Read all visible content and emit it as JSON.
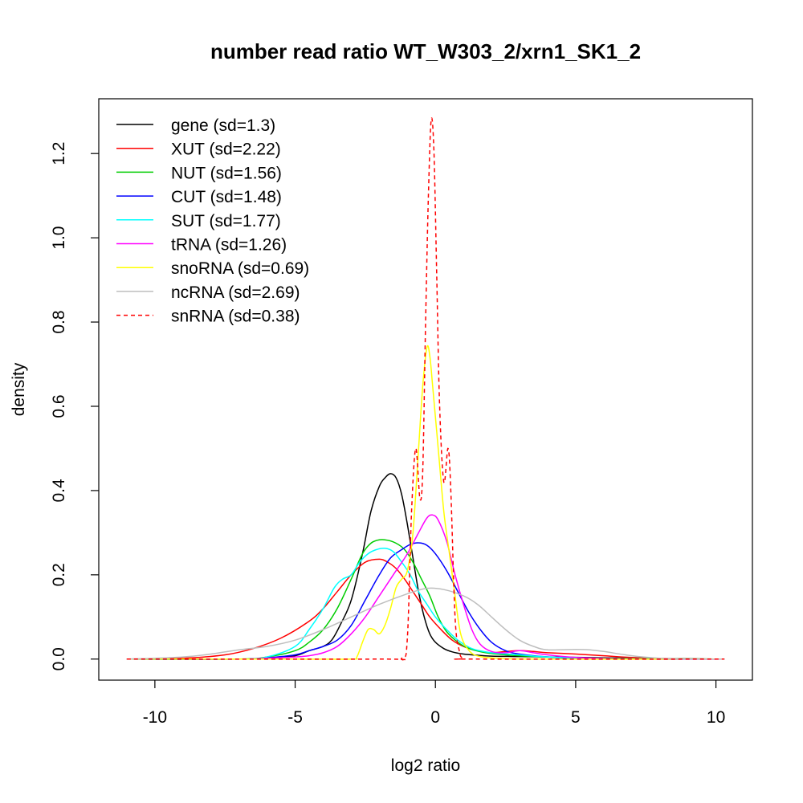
{
  "chart_data": {
    "type": "line",
    "title": "number read ratio WT_W303_2/xrn1_SK1_2",
    "xlabel": "log2 ratio",
    "ylabel": "density",
    "xlim": [
      -12,
      11.3
    ],
    "ylim": [
      -0.05,
      1.33
    ],
    "xticks": [
      -10,
      -5,
      0,
      5,
      10
    ],
    "yticks": [
      0.0,
      0.2,
      0.4,
      0.6,
      0.8,
      1.0,
      1.2
    ],
    "xtick_labels": [
      "-10",
      "-5",
      "0",
      "5",
      "10"
    ],
    "ytick_labels": [
      "0.0",
      "0.2",
      "0.4",
      "0.6",
      "0.8",
      "1.0",
      "1.2"
    ],
    "grid": false,
    "legend_position": "top-left",
    "series": [
      {
        "name": "gene (sd=1.3)",
        "color": "#000000",
        "dash": false,
        "points": [
          [
            -11,
            0
          ],
          [
            -7,
            0
          ],
          [
            -6,
            0.002
          ],
          [
            -5,
            0.008
          ],
          [
            -4.5,
            0.02
          ],
          [
            -4,
            0.03
          ],
          [
            -3.7,
            0.045
          ],
          [
            -3.4,
            0.08
          ],
          [
            -3,
            0.14
          ],
          [
            -2.6,
            0.25
          ],
          [
            -2.3,
            0.35
          ],
          [
            -2,
            0.41
          ],
          [
            -1.8,
            0.43
          ],
          [
            -1.6,
            0.44
          ],
          [
            -1.4,
            0.43
          ],
          [
            -1.2,
            0.39
          ],
          [
            -1,
            0.32
          ],
          [
            -0.8,
            0.24
          ],
          [
            -0.6,
            0.16
          ],
          [
            -0.4,
            0.1
          ],
          [
            -0.2,
            0.06
          ],
          [
            0,
            0.04
          ],
          [
            0.3,
            0.025
          ],
          [
            0.6,
            0.017
          ],
          [
            1,
            0.012
          ],
          [
            1.5,
            0.009
          ],
          [
            2,
            0.007
          ],
          [
            3,
            0.006
          ],
          [
            4,
            0.005
          ],
          [
            6,
            0.003
          ],
          [
            8,
            0.001
          ],
          [
            10.3,
            0
          ]
        ]
      },
      {
        "name": "XUT (sd=2.22)",
        "color": "#ff0000",
        "dash": false,
        "points": [
          [
            -11,
            0
          ],
          [
            -9,
            0.002
          ],
          [
            -7.5,
            0.01
          ],
          [
            -6.5,
            0.025
          ],
          [
            -5.5,
            0.05
          ],
          [
            -4.5,
            0.09
          ],
          [
            -4,
            0.12
          ],
          [
            -3.5,
            0.16
          ],
          [
            -3,
            0.2
          ],
          [
            -2.5,
            0.23
          ],
          [
            -2,
            0.237
          ],
          [
            -1.7,
            0.23
          ],
          [
            -1.4,
            0.215
          ],
          [
            -1.1,
            0.19
          ],
          [
            -0.8,
            0.16
          ],
          [
            -0.5,
            0.13
          ],
          [
            -0.2,
            0.1
          ],
          [
            0.2,
            0.07
          ],
          [
            0.6,
            0.045
          ],
          [
            1,
            0.03
          ],
          [
            1.5,
            0.02
          ],
          [
            2,
            0.015
          ],
          [
            2.5,
            0.018
          ],
          [
            3,
            0.02
          ],
          [
            3.5,
            0.018
          ],
          [
            4,
            0.015
          ],
          [
            5,
            0.012
          ],
          [
            6,
            0.008
          ],
          [
            7,
            0.004
          ],
          [
            8.5,
            0.001
          ],
          [
            10.3,
            0
          ]
        ]
      },
      {
        "name": "NUT (sd=1.56)",
        "color": "#00cd00",
        "dash": false,
        "points": [
          [
            -11,
            0
          ],
          [
            -7,
            0
          ],
          [
            -6,
            0.005
          ],
          [
            -5,
            0.02
          ],
          [
            -4.5,
            0.04
          ],
          [
            -4,
            0.07
          ],
          [
            -3.5,
            0.12
          ],
          [
            -3,
            0.19
          ],
          [
            -2.6,
            0.25
          ],
          [
            -2.3,
            0.275
          ],
          [
            -2,
            0.283
          ],
          [
            -1.7,
            0.282
          ],
          [
            -1.4,
            0.275
          ],
          [
            -1.1,
            0.26
          ],
          [
            -0.8,
            0.23
          ],
          [
            -0.5,
            0.19
          ],
          [
            -0.2,
            0.15
          ],
          [
            0.1,
            0.1
          ],
          [
            0.4,
            0.065
          ],
          [
            0.8,
            0.04
          ],
          [
            1.2,
            0.025
          ],
          [
            1.8,
            0.015
          ],
          [
            2.5,
            0.01
          ],
          [
            3.5,
            0.006
          ],
          [
            5,
            0.003
          ],
          [
            7,
            0.001
          ],
          [
            10.3,
            0
          ]
        ]
      },
      {
        "name": "CUT (sd=1.48)",
        "color": "#0000ff",
        "dash": false,
        "points": [
          [
            -11,
            0
          ],
          [
            -7,
            0
          ],
          [
            -6,
            0.003
          ],
          [
            -5,
            0.01
          ],
          [
            -4.5,
            0.02
          ],
          [
            -4,
            0.03
          ],
          [
            -3.5,
            0.045
          ],
          [
            -3,
            0.08
          ],
          [
            -2.5,
            0.14
          ],
          [
            -2,
            0.2
          ],
          [
            -1.6,
            0.24
          ],
          [
            -1.2,
            0.26
          ],
          [
            -0.9,
            0.272
          ],
          [
            -0.6,
            0.276
          ],
          [
            -0.3,
            0.27
          ],
          [
            0,
            0.25
          ],
          [
            0.4,
            0.21
          ],
          [
            0.8,
            0.16
          ],
          [
            1.2,
            0.11
          ],
          [
            1.6,
            0.07
          ],
          [
            2,
            0.04
          ],
          [
            2.5,
            0.02
          ],
          [
            3,
            0.012
          ],
          [
            4,
            0.005
          ],
          [
            5,
            0.002
          ],
          [
            7,
            0
          ],
          [
            10.3,
            0
          ]
        ]
      },
      {
        "name": "SUT (sd=1.77)",
        "color": "#00ffff",
        "dash": false,
        "points": [
          [
            -11,
            0
          ],
          [
            -7,
            0
          ],
          [
            -6,
            0.005
          ],
          [
            -5,
            0.03
          ],
          [
            -4.5,
            0.07
          ],
          [
            -4,
            0.12
          ],
          [
            -3.6,
            0.17
          ],
          [
            -3.3,
            0.19
          ],
          [
            -3,
            0.2
          ],
          [
            -2.7,
            0.23
          ],
          [
            -2.4,
            0.25
          ],
          [
            -2.1,
            0.26
          ],
          [
            -1.8,
            0.263
          ],
          [
            -1.5,
            0.255
          ],
          [
            -1.2,
            0.23
          ],
          [
            -0.9,
            0.2
          ],
          [
            -0.6,
            0.16
          ],
          [
            -0.3,
            0.13
          ],
          [
            0,
            0.1
          ],
          [
            0.4,
            0.07
          ],
          [
            0.8,
            0.045
          ],
          [
            1.3,
            0.025
          ],
          [
            2,
            0.015
          ],
          [
            3,
            0.01
          ],
          [
            4,
            0.005
          ],
          [
            6,
            0.001
          ],
          [
            10.3,
            0
          ]
        ]
      },
      {
        "name": "tRNA (sd=1.26)",
        "color": "#ff00ff",
        "dash": false,
        "points": [
          [
            -11,
            0
          ],
          [
            -7,
            0
          ],
          [
            -6,
            0.002
          ],
          [
            -5,
            0.005
          ],
          [
            -4.5,
            0.008
          ],
          [
            -4,
            0.015
          ],
          [
            -3.5,
            0.03
          ],
          [
            -3,
            0.06
          ],
          [
            -2.5,
            0.1
          ],
          [
            -2,
            0.15
          ],
          [
            -1.5,
            0.2
          ],
          [
            -1,
            0.25
          ],
          [
            -0.6,
            0.3
          ],
          [
            -0.3,
            0.335
          ],
          [
            -0.1,
            0.342
          ],
          [
            0.1,
            0.33
          ],
          [
            0.4,
            0.28
          ],
          [
            0.7,
            0.2
          ],
          [
            1,
            0.13
          ],
          [
            1.3,
            0.07
          ],
          [
            1.6,
            0.035
          ],
          [
            2,
            0.018
          ],
          [
            2.5,
            0.015
          ],
          [
            3,
            0.02
          ],
          [
            3.5,
            0.015
          ],
          [
            4,
            0.01
          ],
          [
            5,
            0.004
          ],
          [
            7,
            0
          ],
          [
            10.3,
            0
          ]
        ]
      },
      {
        "name": "snoRNA (sd=0.69)",
        "color": "#ffff00",
        "dash": false,
        "points": [
          [
            -11,
            0
          ],
          [
            -5,
            0
          ],
          [
            -3,
            0
          ],
          [
            -2.8,
            0.005
          ],
          [
            -2.6,
            0.04
          ],
          [
            -2.4,
            0.07
          ],
          [
            -2.2,
            0.07
          ],
          [
            -2,
            0.06
          ],
          [
            -1.8,
            0.08
          ],
          [
            -1.6,
            0.12
          ],
          [
            -1.4,
            0.17
          ],
          [
            -1.2,
            0.19
          ],
          [
            -1,
            0.21
          ],
          [
            -0.8,
            0.3
          ],
          [
            -0.6,
            0.5
          ],
          [
            -0.45,
            0.65
          ],
          [
            -0.3,
            0.74
          ],
          [
            -0.2,
            0.72
          ],
          [
            -0.1,
            0.65
          ],
          [
            0.1,
            0.5
          ],
          [
            0.3,
            0.35
          ],
          [
            0.5,
            0.25
          ],
          [
            0.7,
            0.15
          ],
          [
            0.9,
            0.06
          ],
          [
            1.2,
            0.02
          ],
          [
            1.6,
            0.006
          ],
          [
            2.5,
            0.001
          ],
          [
            4,
            0
          ],
          [
            10.3,
            0
          ]
        ]
      },
      {
        "name": "ncRNA (sd=2.69)",
        "color": "#bebebe",
        "dash": false,
        "points": [
          [
            -11,
            0
          ],
          [
            -10,
            0.002
          ],
          [
            -9,
            0.005
          ],
          [
            -8,
            0.012
          ],
          [
            -7,
            0.022
          ],
          [
            -6,
            0.03
          ],
          [
            -5,
            0.045
          ],
          [
            -4,
            0.07
          ],
          [
            -3,
            0.1
          ],
          [
            -2,
            0.13
          ],
          [
            -1,
            0.155
          ],
          [
            -0.3,
            0.168
          ],
          [
            0.3,
            0.165
          ],
          [
            1,
            0.15
          ],
          [
            1.5,
            0.13
          ],
          [
            2,
            0.1
          ],
          [
            2.5,
            0.07
          ],
          [
            3,
            0.045
          ],
          [
            3.5,
            0.03
          ],
          [
            4,
            0.022
          ],
          [
            5,
            0.023
          ],
          [
            5.5,
            0.022
          ],
          [
            6,
            0.018
          ],
          [
            7,
            0.008
          ],
          [
            8,
            0.002
          ],
          [
            9,
            0
          ],
          [
            10.3,
            0
          ]
        ]
      },
      {
        "name": "snRNA (sd=0.38)",
        "color": "#ff0000",
        "dash": true,
        "points": [
          [
            -11,
            0
          ],
          [
            -2,
            0
          ],
          [
            -1.2,
            0.002
          ],
          [
            -1,
            0.05
          ],
          [
            -0.85,
            0.35
          ],
          [
            -0.7,
            0.5
          ],
          [
            -0.55,
            0.38
          ],
          [
            -0.45,
            0.45
          ],
          [
            -0.35,
            0.8
          ],
          [
            -0.25,
            1.1
          ],
          [
            -0.15,
            1.28
          ],
          [
            -0.05,
            1.2
          ],
          [
            0.05,
            0.9
          ],
          [
            0.15,
            0.6
          ],
          [
            0.3,
            0.42
          ],
          [
            0.45,
            0.5
          ],
          [
            0.55,
            0.4
          ],
          [
            0.7,
            0.1
          ],
          [
            0.85,
            0.02
          ],
          [
            1,
            0.002
          ],
          [
            1.5,
            0
          ],
          [
            10.3,
            0
          ]
        ]
      }
    ]
  }
}
